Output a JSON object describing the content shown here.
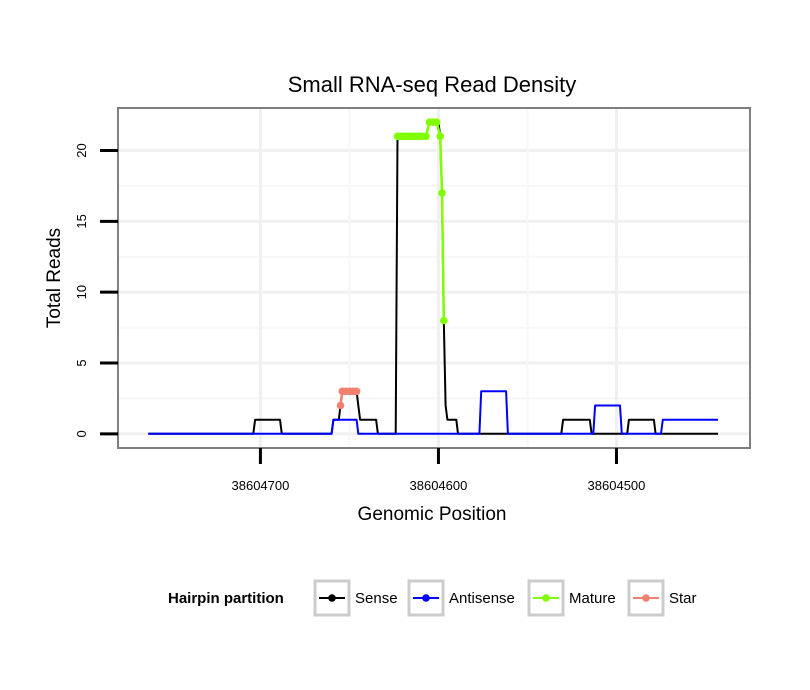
{
  "chart_data": {
    "type": "line",
    "title": "Small RNA-seq Read Density",
    "xlabel": "Genomic Position",
    "ylabel": "Total Reads",
    "xlim": [
      38604780,
      38604425
    ],
    "x_reversed": true,
    "ylim": [
      -1,
      23
    ],
    "x_ticks": [
      38604700,
      38604600,
      38604500
    ],
    "x_tick_labels": [
      "38604700",
      "38604600",
      "38604500"
    ],
    "y_ticks": [
      0,
      5,
      10,
      15,
      20
    ],
    "y_tick_labels": [
      "0",
      "5",
      "10",
      "15",
      "20"
    ],
    "grid": true,
    "legend": {
      "title": "Hairpin partition",
      "placement": "bottom",
      "items": [
        {
          "label": "Sense",
          "color": "#000000"
        },
        {
          "label": "Antisense",
          "color": "#0000ff"
        },
        {
          "label": "Mature",
          "color": "#7fff00"
        },
        {
          "label": "Star",
          "color": "#f08070"
        }
      ]
    },
    "series": [
      {
        "name": "Sense",
        "color": "#000000",
        "points": [
          [
            38604763,
            0
          ],
          [
            38604704,
            0
          ],
          [
            38604703,
            1
          ],
          [
            38604689,
            1
          ],
          [
            38604688,
            0
          ],
          [
            38604660,
            0
          ],
          [
            38604659,
            1
          ],
          [
            38604656,
            1
          ],
          [
            38604655,
            2
          ],
          [
            38604654,
            3
          ],
          [
            38604646,
            3
          ],
          [
            38604645,
            2
          ],
          [
            38604644,
            1
          ],
          [
            38604635,
            1
          ],
          [
            38604634,
            0
          ],
          [
            38604624,
            0
          ],
          [
            38604623,
            21
          ],
          [
            38604607,
            21
          ],
          [
            38604605,
            22
          ],
          [
            38604600,
            22
          ],
          [
            38604599,
            21
          ],
          [
            38604598,
            17
          ],
          [
            38604597,
            8
          ],
          [
            38604596,
            2
          ],
          [
            38604595,
            1
          ],
          [
            38604590,
            1
          ],
          [
            38604589,
            0
          ],
          [
            38604531,
            0
          ],
          [
            38604530,
            1
          ],
          [
            38604515,
            1
          ],
          [
            38604514,
            0
          ],
          [
            38604494,
            0
          ],
          [
            38604493,
            1
          ],
          [
            38604479,
            1
          ],
          [
            38604478,
            0
          ],
          [
            38604443,
            0
          ]
        ]
      },
      {
        "name": "Antisense",
        "color": "#0000ff",
        "points": [
          [
            38604763,
            0
          ],
          [
            38604660,
            0
          ],
          [
            38604659,
            1
          ],
          [
            38604646,
            1
          ],
          [
            38604645,
            0
          ],
          [
            38604577,
            0
          ],
          [
            38604576,
            3
          ],
          [
            38604562,
            3
          ],
          [
            38604561,
            0
          ],
          [
            38604513,
            0
          ],
          [
            38604512,
            2
          ],
          [
            38604498,
            2
          ],
          [
            38604497,
            0
          ],
          [
            38604475,
            0
          ],
          [
            38604474,
            1
          ],
          [
            38604443,
            1
          ]
        ]
      },
      {
        "name": "Mature",
        "color": "#7fff00",
        "points": [
          [
            38604623,
            21
          ],
          [
            38604621,
            21
          ],
          [
            38604619,
            21
          ],
          [
            38604617,
            21
          ],
          [
            38604615,
            21
          ],
          [
            38604613,
            21
          ],
          [
            38604611,
            21
          ],
          [
            38604609,
            21
          ],
          [
            38604607,
            21
          ],
          [
            38604605,
            22
          ],
          [
            38604603,
            22
          ],
          [
            38604601,
            22
          ],
          [
            38604599,
            21
          ],
          [
            38604598,
            17
          ],
          [
            38604597,
            8
          ]
        ]
      },
      {
        "name": "Star",
        "color": "#f08070",
        "points": [
          [
            38604655,
            2
          ],
          [
            38604654,
            3
          ],
          [
            38604652,
            3
          ],
          [
            38604650,
            3
          ],
          [
            38604648,
            3
          ],
          [
            38604646,
            3
          ]
        ]
      }
    ]
  }
}
